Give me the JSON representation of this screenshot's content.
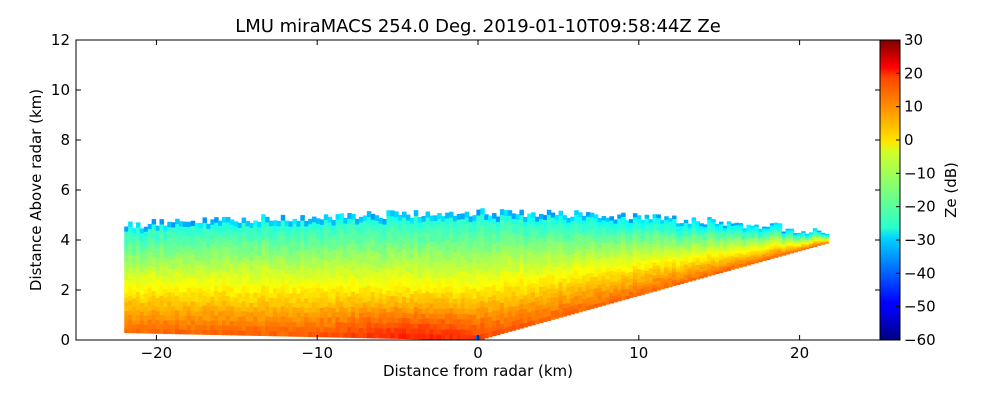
{
  "chart_data": {
    "type": "heatmap",
    "title": "LMU miraMACS 254.0 Deg. 2019-01-10T09:58:44Z  Ze",
    "xlabel": "Distance from radar (km)",
    "ylabel": "Distance Above radar  (km)",
    "xlim": [
      -25,
      25
    ],
    "ylim": [
      0,
      12
    ],
    "xticks": [
      -20,
      -10,
      0,
      10,
      20
    ],
    "xtick_labels": [
      "−20",
      "−10",
      "0",
      "10",
      "20"
    ],
    "yticks": [
      0,
      2,
      4,
      6,
      8,
      10,
      12
    ],
    "ytick_labels": [
      "0",
      "2",
      "4",
      "6",
      "8",
      "10",
      "12"
    ],
    "colorbar": {
      "label": "Ze (dB)",
      "range": [
        -60,
        30
      ],
      "ticks": [
        30,
        20,
        10,
        0,
        -10,
        -20,
        -30,
        -40,
        -50,
        -60
      ],
      "tick_labels": [
        "30",
        "20",
        "10",
        "0",
        "−10",
        "−20",
        "−30",
        "−40",
        "−50",
        "−60"
      ],
      "colormap": "jet"
    },
    "echo_region": {
      "description_values": "radar echo sector",
      "left_edge_x": -22,
      "right_edge_x": 21.8,
      "top_height_left": 4.5,
      "top_height_center": 5.1,
      "top_height_right": 4.3,
      "bottom_left_height": 0.3,
      "bottom_right_height": 3.9,
      "origin_x": 0,
      "ze_near_surface": 10,
      "ze_mid": -5,
      "ze_top": -25,
      "ze_cloud_edge": -35
    }
  }
}
